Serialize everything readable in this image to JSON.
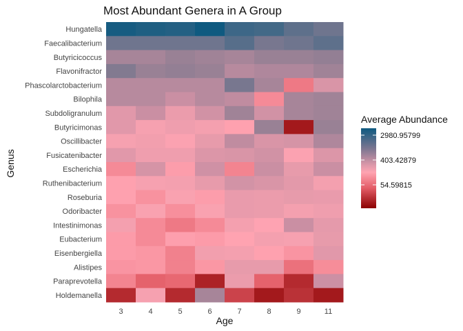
{
  "chart_data": {
    "type": "heatmap",
    "title": "Most Abundant Genera in A Group",
    "xlabel": "Age",
    "ylabel": "Genus",
    "x": [
      "3",
      "4",
      "5",
      "6",
      "7",
      "8",
      "9",
      "11"
    ],
    "y": [
      "Hungatella",
      "Faecalibacterium",
      "Butyricicoccus",
      "Flavonifractor",
      "Phascolarctobacterium",
      "Bilophila",
      "Subdoligranulum",
      "Butyricimonas",
      "Oscillibacter",
      "Fusicatenibacter",
      "Escherichia",
      "Ruthenibacterium",
      "Roseburia",
      "Odoribacter",
      "Intestinimonas",
      "Eubacterium",
      "Eisenbergiella",
      "Alistipes",
      "Paraprevotella",
      "Holdemanella"
    ],
    "values": [
      [
        2800,
        2600,
        2500,
        3000,
        2000,
        1900,
        1500,
        1300
      ],
      [
        1300,
        1300,
        1300,
        1300,
        1600,
        1200,
        1300,
        1500
      ],
      [
        800,
        800,
        900,
        850,
        800,
        900,
        900,
        950
      ],
      [
        1100,
        900,
        950,
        900,
        700,
        750,
        750,
        850
      ],
      [
        700,
        700,
        700,
        700,
        1200,
        800,
        150,
        500
      ],
      [
        700,
        700,
        600,
        700,
        650,
        200,
        800,
        850
      ],
      [
        450,
        600,
        400,
        550,
        850,
        550,
        800,
        850
      ],
      [
        450,
        350,
        380,
        360,
        300,
        900,
        30,
        900
      ],
      [
        350,
        370,
        330,
        420,
        650,
        500,
        520,
        750
      ],
      [
        450,
        380,
        380,
        480,
        500,
        550,
        330,
        480
      ],
      [
        200,
        520,
        280,
        560,
        180,
        600,
        420,
        600
      ],
      [
        300,
        350,
        360,
        420,
        540,
        500,
        440,
        360
      ],
      [
        300,
        230,
        340,
        280,
        410,
        400,
        420,
        410
      ],
      [
        230,
        340,
        220,
        340,
        410,
        400,
        360,
        380
      ],
      [
        360,
        200,
        150,
        200,
        360,
        320,
        600,
        430
      ],
      [
        270,
        200,
        290,
        270,
        310,
        360,
        350,
        420
      ],
      [
        270,
        250,
        170,
        370,
        360,
        300,
        240,
        450
      ],
      [
        240,
        250,
        170,
        250,
        420,
        420,
        130,
        210
      ],
      [
        180,
        100,
        110,
        35,
        400,
        100,
        40,
        580
      ],
      [
        40,
        350,
        40,
        800,
        60,
        30,
        45,
        30
      ]
    ],
    "legend": {
      "title": "Average Abundance",
      "ticks": [
        "2980.95799",
        "403.42879",
        "54.59815"
      ],
      "scale": "log",
      "range": [
        20,
        3000
      ],
      "colors": {
        "low": "#8b0000",
        "mid": "#ffa4b2",
        "high": "#0f5a80",
        "midgray": "#8d7d92"
      }
    }
  }
}
